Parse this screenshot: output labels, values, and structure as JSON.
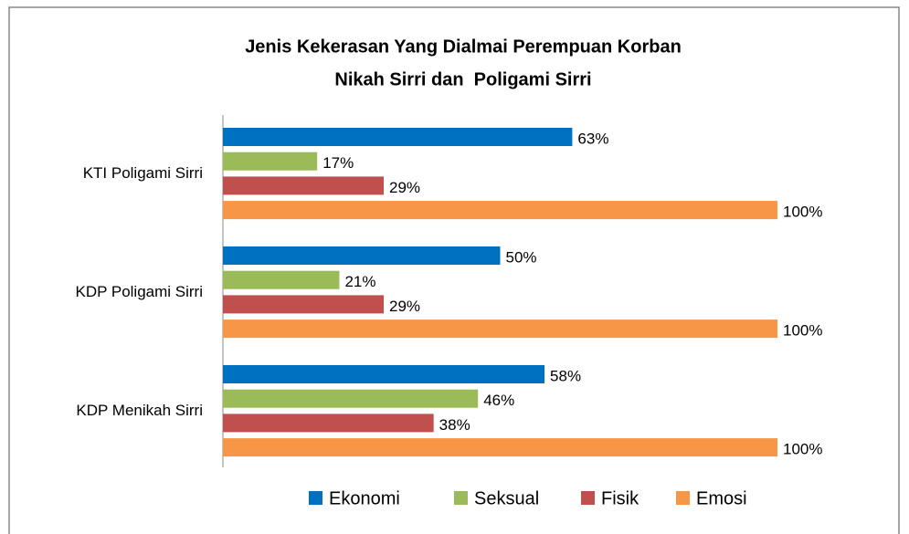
{
  "chart_data": {
    "type": "bar",
    "orientation": "horizontal",
    "title": [
      "Jenis Kekerasan Yang Dialmai Perempuan Korban",
      "Nikah Sirri dan  Poligami Sirri"
    ],
    "categories": [
      "KTI Poligami Sirri",
      "KDP Poligami Sirri",
      "KDP Menikah Sirri"
    ],
    "series": [
      {
        "name": "Ekonomi",
        "color": "#0070c0",
        "values": [
          63,
          50,
          58
        ],
        "value_labels": [
          "63%",
          "50%",
          "58%"
        ]
      },
      {
        "name": "Seksual",
        "color": "#9bbb59",
        "values": [
          17,
          21,
          46
        ],
        "value_labels": [
          "17%",
          "21%",
          "46%"
        ]
      },
      {
        "name": "Fisik",
        "color": "#c0504d",
        "values": [
          29,
          29,
          38
        ],
        "value_labels": [
          "29%",
          "29%",
          "38%"
        ]
      },
      {
        "name": "Emosi",
        "color": "#f79646",
        "values": [
          100,
          100,
          100
        ],
        "value_labels": [
          "100%",
          "100%",
          "100%"
        ]
      }
    ],
    "xlim": [
      0,
      100
    ],
    "legend": "bottom"
  }
}
